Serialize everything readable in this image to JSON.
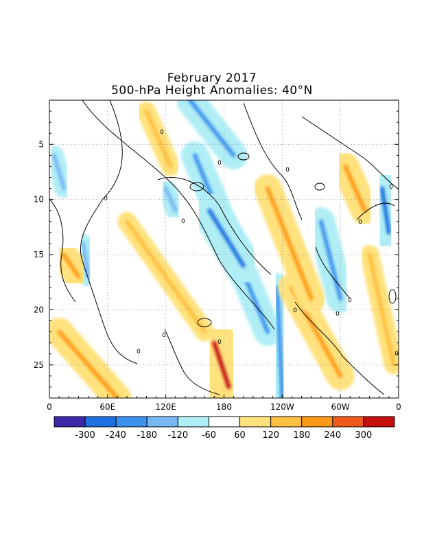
{
  "chart_data": {
    "type": "heatmap",
    "title": "February 2017",
    "subtitle": "500-hPa Height Anomalies: 40°N",
    "x_ticks": [
      "0",
      "60E",
      "120E",
      "180",
      "120W",
      "60W",
      "0"
    ],
    "y_ticks": [
      "5",
      "10",
      "15",
      "20",
      "25"
    ],
    "y_range": [
      1,
      28
    ],
    "grid": "dotted",
    "colorbar_labels": [
      "-300",
      "-240",
      "-180",
      "-120",
      "-60",
      "60",
      "120",
      "180",
      "240",
      "300"
    ],
    "colorbar_colors": [
      "#3b28a6",
      "#1f6fe0",
      "#3d92ee",
      "#78b8f5",
      "#b0eef6",
      "#ffffff",
      "#ffe27d",
      "#ffbf40",
      "#ff9a19",
      "#ee5a1c",
      "#c40f0a"
    ],
    "contour_label": "0",
    "features": [
      {
        "sign": "negative",
        "level": 3,
        "lon_start": 150,
        "day_start": 6,
        "lon_end": 225,
        "day_end": 22
      },
      {
        "sign": "negative",
        "level": 3,
        "lon_start": 235,
        "day_start": 18,
        "lon_end": 240,
        "day_end": 28
      },
      {
        "sign": "negative",
        "level": 4,
        "lon_start": 165,
        "day_start": 11,
        "lon_end": 200,
        "day_end": 16
      },
      {
        "sign": "negative",
        "level": 3,
        "lon_start": 280,
        "day_start": 12,
        "lon_end": 300,
        "day_end": 19
      },
      {
        "sign": "negative",
        "level": 4,
        "lon_start": 343,
        "day_start": 9,
        "lon_end": 350,
        "day_end": 13
      },
      {
        "sign": "negative",
        "level": 3,
        "lon_start": 145,
        "day_start": 1,
        "lon_end": 190,
        "day_end": 6
      },
      {
        "sign": "negative",
        "level": 2,
        "lon_start": 120,
        "day_start": 9,
        "lon_end": 130,
        "day_end": 11
      },
      {
        "sign": "negative",
        "level": 2,
        "lon_start": 5,
        "day_start": 6,
        "lon_end": 15,
        "day_end": 9
      },
      {
        "sign": "negative",
        "level": 2,
        "lon_start": 35,
        "day_start": 14,
        "lon_end": 40,
        "day_end": 17
      },
      {
        "sign": "positive",
        "level": 5,
        "lon_start": 170,
        "day_start": 23,
        "lon_end": 185,
        "day_end": 27
      },
      {
        "sign": "positive",
        "level": 3,
        "lon_start": 250,
        "day_start": 18,
        "lon_end": 300,
        "day_end": 26
      },
      {
        "sign": "positive",
        "level": 3,
        "lon_start": 225,
        "day_start": 9,
        "lon_end": 270,
        "day_end": 19
      },
      {
        "sign": "positive",
        "level": 2,
        "lon_start": 80,
        "day_start": 12,
        "lon_end": 160,
        "day_end": 22
      },
      {
        "sign": "positive",
        "level": 3,
        "lon_start": 15,
        "day_start": 15,
        "lon_end": 30,
        "day_end": 17
      },
      {
        "sign": "positive",
        "level": 3,
        "lon_start": 10,
        "day_start": 22,
        "lon_end": 70,
        "day_end": 28
      },
      {
        "sign": "positive",
        "level": 3,
        "lon_start": 305,
        "day_start": 7,
        "lon_end": 325,
        "day_end": 11
      },
      {
        "sign": "positive",
        "level": 2,
        "lon_start": 100,
        "day_start": 2,
        "lon_end": 125,
        "day_end": 7
      },
      {
        "sign": "positive",
        "level": 2,
        "lon_start": 330,
        "day_start": 15,
        "lon_end": 355,
        "day_end": 25
      }
    ]
  }
}
